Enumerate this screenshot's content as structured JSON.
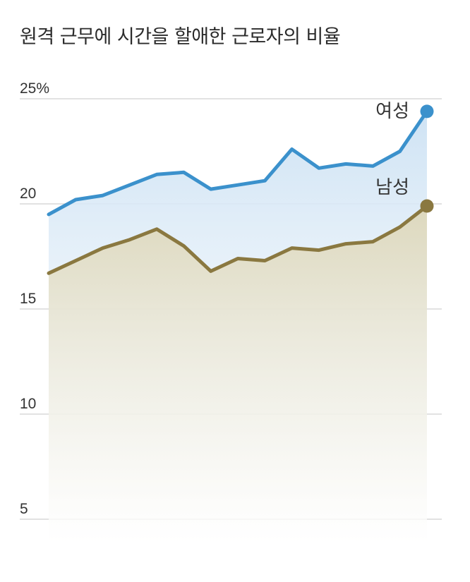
{
  "title": "원격 근무에 시간을 할애한 근로자의 비율",
  "colors": {
    "women": "#3b91cc",
    "men": "#8a7840",
    "gridline": "#d9d9d9",
    "area_women_top": "#cfe3f4",
    "area_men_top": "#ddd8bd"
  },
  "chart_data": {
    "type": "area",
    "title": "원격 근무에 시간을 할애한 근로자의 비율",
    "xlabel": "",
    "ylabel": "",
    "ylim": [
      4,
      25
    ],
    "y_ticks": [
      5,
      10,
      15,
      20,
      25
    ],
    "y_tick_labels": [
      "5",
      "10",
      "15",
      "20",
      "25%"
    ],
    "grid": true,
    "series": [
      {
        "name": "여성",
        "color": "#3b91cc",
        "values": [
          19.5,
          20.2,
          20.4,
          20.9,
          21.4,
          21.5,
          20.7,
          20.9,
          21.1,
          22.6,
          21.7,
          21.9,
          21.8,
          22.5,
          24.4
        ]
      },
      {
        "name": "남성",
        "color": "#8a7840",
        "values": [
          16.7,
          17.3,
          17.9,
          18.3,
          18.8,
          18.0,
          16.8,
          17.4,
          17.3,
          17.9,
          17.8,
          18.1,
          18.2,
          18.9,
          19.9
        ]
      }
    ]
  }
}
